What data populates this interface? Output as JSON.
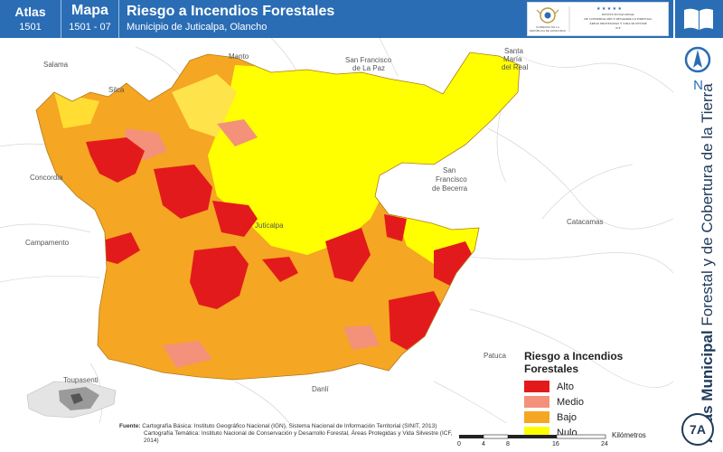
{
  "header": {
    "atlas_label": "Atlas",
    "atlas_number": "1501",
    "map_label": "Mapa",
    "map_number": "1501 - 07",
    "title": "Riesgo a Incendios Forestales",
    "subtitle": "Municipio de Juticalpa, Olancho",
    "institution_left": "GOBIERNO DE LA REPÚBLICA DE HONDURAS",
    "institution_right": "INSTITUTO NACIONAL DE CONSERVACIÓN Y DESARROLLO FORESTAL ÁREAS PROTEGIDAS Y VIDA SILVESTRE ICF"
  },
  "sidebar": {
    "north_label": "N",
    "title_bold": "Atlas Municipal",
    "title_rest": " Forestal y de Cobertura de la Tierra",
    "badge": "7A"
  },
  "places": {
    "salama": "Salama",
    "manto": "Manto",
    "sf_paz_1": "San Francisco",
    "sf_paz_2": "de La Paz",
    "sm_real_1": "Santa",
    "sm_real_2": "María",
    "sm_real_3": "del Real",
    "silca": "Silca",
    "concordia": "Concordia",
    "sf_becerra_1": "San",
    "sf_becerra_2": "Francisco",
    "sf_becerra_3": "de Becerra",
    "juticalpa": "Juticalpa",
    "catacamas": "Catacamas",
    "campamento": "Campamento",
    "patuca": "Patuca",
    "toupasenti": "Toupasenti",
    "danli": "Danlí"
  },
  "legend": {
    "title": "Riesgo a Incendios Forestales",
    "items": [
      {
        "label": "Alto",
        "color": "#e31a1c"
      },
      {
        "label": "Medio",
        "color": "#f4917a"
      },
      {
        "label": "Bajo",
        "color": "#f5a623"
      },
      {
        "label": "Nulo",
        "color": "#ffff00"
      }
    ]
  },
  "source": {
    "label": "Fuente:",
    "line1": "Cartografía Básica: Instituto Geográfico Nacional (IGN), Sistema Nacional de Información Territorial (SINIT, 2013)",
    "line2": "Cartografía Temática: Instituto Nacional de Conservación y Desarrollo Forestal, Áreas Protegidas y Vida Silvestre (ICF, 2014)"
  },
  "scale": {
    "ticks": [
      "0",
      "4",
      "8",
      "16",
      "24"
    ],
    "unit": "Kilómetros"
  }
}
